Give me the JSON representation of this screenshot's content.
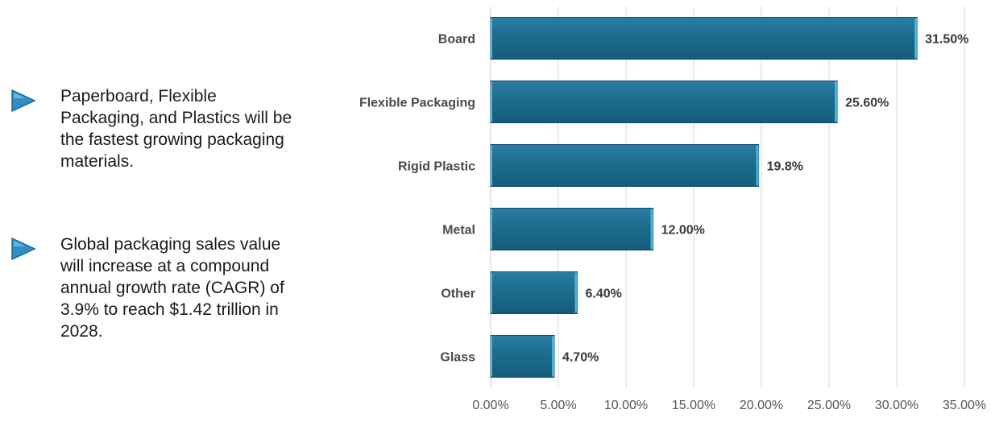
{
  "bullets": [
    {
      "icon": "triangle-right-icon",
      "text": "Paperboard, Flexible Packaging, and Plastics will be the fastest growing packaging materials."
    },
    {
      "icon": "triangle-right-icon",
      "text": "Global packaging sales value will increase at a compound annual growth rate (CAGR) of 3.9% to reach $1.42 trillion in 2028."
    }
  ],
  "colors": {
    "bar": "#1b6a8c",
    "bar_edge": "#0f4e6a",
    "bar_highlight": "#4fb3de",
    "arrow": "#2d8fc4",
    "grid": "#d9d9d9"
  },
  "chart_data": {
    "type": "bar",
    "orientation": "horizontal",
    "title": "",
    "xlabel": "",
    "ylabel": "",
    "categories": [
      "Board",
      "Flexible Packaging",
      "Rigid Plastic",
      "Metal",
      "Other",
      "Glass"
    ],
    "values": [
      31.5,
      25.6,
      19.8,
      12.0,
      6.4,
      4.7
    ],
    "value_labels": [
      "31.50%",
      "25.60%",
      "19.8%",
      "12.00%",
      "6.40%",
      "4.70%"
    ],
    "xlim": [
      0,
      35
    ],
    "xticks": [
      0,
      5,
      10,
      15,
      20,
      25,
      30,
      35
    ],
    "xtick_labels": [
      "0.00%",
      "5.00%",
      "10.00%",
      "15.00%",
      "20.00%",
      "25.00%",
      "30.00%",
      "35.00%"
    ],
    "grid": true,
    "legend": "none"
  }
}
